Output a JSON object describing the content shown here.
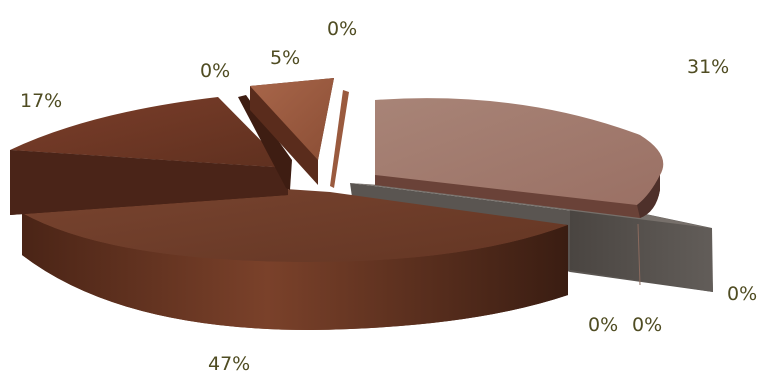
{
  "chart_data": {
    "type": "pie",
    "style": "3d-exploded",
    "legend": "top (cut off)",
    "slices": [
      {
        "value": 31,
        "label": "31%",
        "color": "#a47b6e"
      },
      {
        "value": 0,
        "label": "0%",
        "color": "#55504c"
      },
      {
        "value": 0,
        "label": "0%",
        "color": "#55504c"
      },
      {
        "value": 0,
        "label": "0%",
        "color": "#55504c"
      },
      {
        "value": 47,
        "label": "47%",
        "color": "#6a3a25"
      },
      {
        "value": 17,
        "label": "17%",
        "color": "#6b3524"
      },
      {
        "value": 0,
        "label": "0%",
        "color": "#5e3324"
      },
      {
        "value": 5,
        "label": "5%",
        "color": "#9a5a3e"
      },
      {
        "value": 0,
        "label": "0%",
        "color": "#9a5a3e"
      }
    ]
  }
}
